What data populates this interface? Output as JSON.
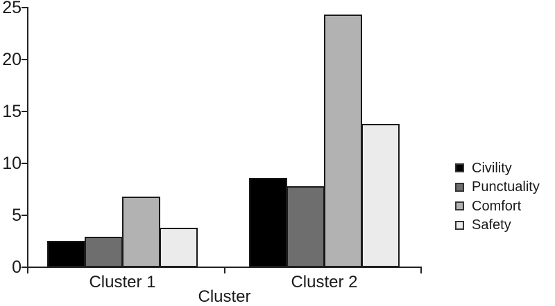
{
  "chart_data": {
    "type": "bar",
    "title": "",
    "xlabel": "Cluster",
    "ylabel": "",
    "ylim": [
      0,
      25
    ],
    "yticks": [
      0,
      5,
      10,
      15,
      20,
      25
    ],
    "grid": false,
    "legend_position": "right",
    "categories": [
      "Cluster 1",
      "Cluster 2"
    ],
    "series": [
      {
        "name": "Civility",
        "color": "#000000",
        "values": [
          2.5,
          8.6
        ]
      },
      {
        "name": "Punctuality",
        "color": "#6e6e6e",
        "values": [
          2.9,
          7.8
        ]
      },
      {
        "name": "Comfort",
        "color": "#b2b2b2",
        "values": [
          6.8,
          24.3
        ]
      },
      {
        "name": "Safety",
        "color": "#ebebeb",
        "values": [
          3.8,
          13.8
        ]
      }
    ]
  }
}
